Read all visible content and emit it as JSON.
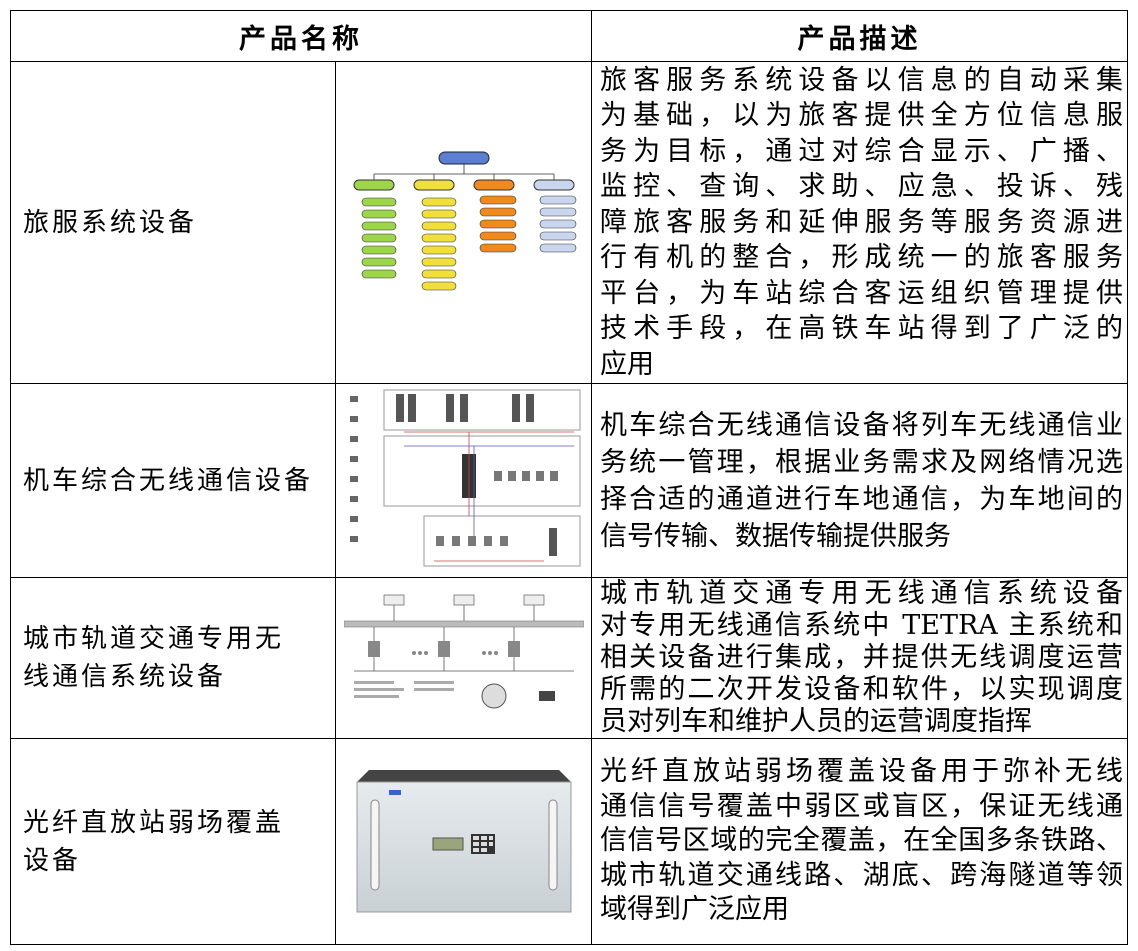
{
  "table": {
    "header": [
      "产品名称",
      "产品描述"
    ],
    "rows": [
      {
        "name": [
          "旅服系统设备"
        ],
        "description": [
          "旅客服务系统设备以信息的自动采集",
          "为基础，以为旅客提供全方位信息服",
          "务为目标，通过对综合显示、广播、",
          "监控、查询、求助、应急、投诉、残",
          "障旅客服务和延伸服务等服务资源进",
          "行有机的整合，形成统一的旅客服务",
          "平台，为车站综合客运组织管理提供",
          "技术手段，在高铁车站得到了广泛的",
          "应用"
        ]
      },
      {
        "name": [
          "机车综合无线通信设备"
        ],
        "description": [
          "机车综合无线通信设备将列车无线通信业",
          "务统一管理，根据业务需求及网络情况选",
          "择合适的通道进行车地通信，为车地间的",
          "信号传输、数据传输提供服务"
        ]
      },
      {
        "name": [
          "城市轨道交通专用无",
          "线通信系统设备"
        ],
        "description": [
          "城市轨道交通专用无线通信系统设备",
          "对专用无线通信系统中 TETRA 主系统和",
          "相关设备进行集成，并提供无线调度运营",
          "所需的二次开发设备和软件，以实现调度",
          "员对列车和维护人员的运营调度指挥"
        ]
      },
      {
        "name": [
          "光纤直放站弱场覆盖",
          "设备"
        ],
        "description": [
          "光纤直放站弱场覆盖设备用于弥补无线",
          "通信信号覆盖中弱区或盲区，保证无线通",
          "信信号区域的完全覆盖，在全国多条铁路、",
          "城市轨道交通线路、湖底、跨海隧道等领",
          "域得到广泛应用"
        ]
      }
    ]
  }
}
